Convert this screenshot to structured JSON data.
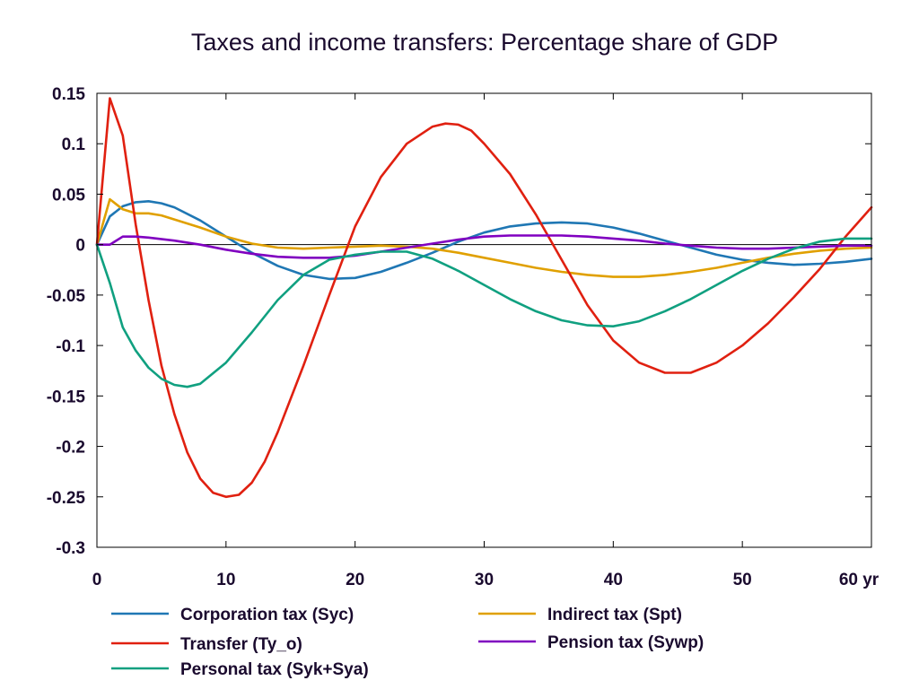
{
  "chart_data": {
    "type": "line",
    "title": "Taxes and income transfers: Percentage share of GDP",
    "xlabel": "",
    "ylabel": "",
    "x_unit_label": "yr",
    "xlim": [
      0,
      60
    ],
    "ylim": [
      -0.3,
      0.15
    ],
    "xticks": [
      0,
      10,
      20,
      30,
      40,
      50,
      60
    ],
    "xtick_labels": [
      "0",
      "10",
      "20",
      "30",
      "40",
      "50",
      "60 yr"
    ],
    "yticks": [
      0.15,
      0.1,
      0.05,
      0,
      -0.05,
      -0.1,
      -0.15,
      -0.2,
      -0.25,
      -0.3
    ],
    "ytick_labels": [
      "0.15",
      "0.1",
      "0.05",
      "0",
      "-0.05",
      "-0.1",
      "-0.15",
      "-0.2",
      "-0.25",
      "-0.3"
    ],
    "grid": false,
    "zero_line": true,
    "legend_position": "bottom",
    "series": [
      {
        "name": "Corporation tax (Syc)",
        "color": "#1f77b4",
        "x": [
          0,
          1,
          2,
          3,
          4,
          5,
          6,
          8,
          10,
          12,
          14,
          16,
          18,
          20,
          22,
          24,
          26,
          28,
          30,
          32,
          34,
          36,
          38,
          40,
          42,
          44,
          46,
          48,
          50,
          52,
          54,
          56,
          58,
          60
        ],
        "y": [
          0,
          0.028,
          0.038,
          0.042,
          0.043,
          0.041,
          0.037,
          0.024,
          0.008,
          -0.008,
          -0.021,
          -0.03,
          -0.034,
          -0.033,
          -0.027,
          -0.018,
          -0.008,
          0.003,
          0.012,
          0.018,
          0.021,
          0.022,
          0.021,
          0.017,
          0.011,
          0.004,
          -0.003,
          -0.01,
          -0.015,
          -0.018,
          -0.02,
          -0.019,
          -0.017,
          -0.014
        ]
      },
      {
        "name": "Indirect tax (Spt)",
        "color": "#e0a000",
        "x": [
          0,
          1,
          2,
          3,
          4,
          5,
          6,
          8,
          10,
          12,
          14,
          16,
          18,
          20,
          22,
          24,
          26,
          28,
          30,
          32,
          34,
          36,
          38,
          40,
          42,
          44,
          46,
          48,
          50,
          52,
          54,
          56,
          58,
          60
        ],
        "y": [
          0,
          0.045,
          0.035,
          0.031,
          0.031,
          0.029,
          0.025,
          0.017,
          0.008,
          0.001,
          -0.003,
          -0.004,
          -0.003,
          -0.002,
          -0.001,
          -0.002,
          -0.004,
          -0.008,
          -0.013,
          -0.018,
          -0.023,
          -0.027,
          -0.03,
          -0.032,
          -0.032,
          -0.03,
          -0.027,
          -0.023,
          -0.018,
          -0.013,
          -0.009,
          -0.006,
          -0.004,
          -0.003
        ]
      },
      {
        "name": "Transfer (Ty_o)",
        "color": "#e02010",
        "x": [
          0,
          1,
          2,
          3,
          4,
          5,
          6,
          7,
          8,
          9,
          10,
          11,
          12,
          13,
          14,
          16,
          18,
          20,
          22,
          24,
          26,
          27,
          28,
          29,
          30,
          32,
          34,
          36,
          38,
          40,
          42,
          44,
          46,
          48,
          50,
          52,
          54,
          56,
          58,
          60
        ],
        "y": [
          0,
          0.145,
          0.108,
          0.02,
          -0.055,
          -0.12,
          -0.168,
          -0.206,
          -0.232,
          -0.246,
          -0.25,
          -0.248,
          -0.236,
          -0.215,
          -0.186,
          -0.12,
          -0.05,
          0.018,
          0.067,
          0.1,
          0.117,
          0.12,
          0.119,
          0.113,
          0.1,
          0.07,
          0.03,
          -0.015,
          -0.06,
          -0.095,
          -0.117,
          -0.127,
          -0.127,
          -0.117,
          -0.1,
          -0.078,
          -0.052,
          -0.024,
          0.008,
          0.037
        ]
      },
      {
        "name": "Pension tax (Sywp)",
        "color": "#8000c0",
        "x": [
          0,
          1,
          2,
          3,
          4,
          6,
          8,
          10,
          12,
          14,
          16,
          18,
          20,
          22,
          24,
          26,
          28,
          30,
          32,
          34,
          36,
          38,
          40,
          42,
          44,
          46,
          48,
          50,
          52,
          54,
          56,
          58,
          60
        ],
        "y": [
          0,
          0.0,
          0.008,
          0.008,
          0.007,
          0.004,
          0.0,
          -0.005,
          -0.009,
          -0.012,
          -0.013,
          -0.013,
          -0.011,
          -0.007,
          -0.003,
          0.001,
          0.005,
          0.008,
          0.009,
          0.009,
          0.009,
          0.008,
          0.006,
          0.004,
          0.001,
          -0.001,
          -0.003,
          -0.004,
          -0.004,
          -0.003,
          -0.002,
          -0.001,
          -0.001
        ]
      },
      {
        "name": "Personal tax (Syk+Sya)",
        "color": "#10a080",
        "x": [
          0,
          1,
          2,
          3,
          4,
          5,
          6,
          7,
          8,
          10,
          12,
          14,
          16,
          18,
          20,
          22,
          24,
          26,
          28,
          30,
          32,
          34,
          36,
          38,
          40,
          42,
          44,
          46,
          48,
          50,
          52,
          54,
          56,
          58,
          60
        ],
        "y": [
          0,
          -0.038,
          -0.082,
          -0.105,
          -0.122,
          -0.133,
          -0.139,
          -0.141,
          -0.138,
          -0.117,
          -0.087,
          -0.055,
          -0.03,
          -0.015,
          -0.01,
          -0.007,
          -0.007,
          -0.014,
          -0.026,
          -0.04,
          -0.054,
          -0.066,
          -0.075,
          -0.08,
          -0.081,
          -0.076,
          -0.066,
          -0.054,
          -0.04,
          -0.026,
          -0.014,
          -0.004,
          0.003,
          0.006,
          0.006
        ]
      }
    ],
    "legend": [
      "Corporation tax (Syc)",
      "Indirect tax (Spt)",
      "Transfer (Ty_o)",
      "Pension tax (Sywp)",
      "Personal tax (Syk+Sya)"
    ]
  }
}
